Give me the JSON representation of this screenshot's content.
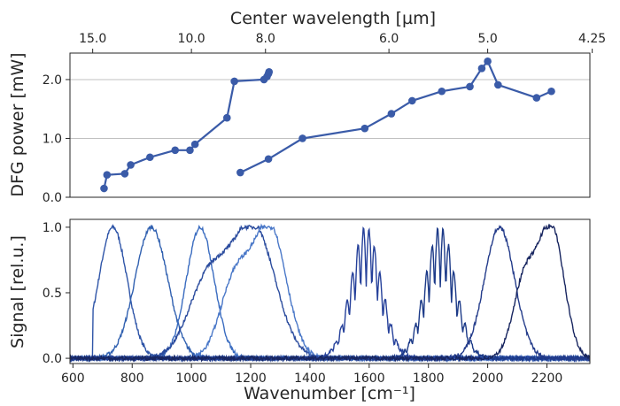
{
  "chart_data": [
    {
      "type": "line",
      "id": "top-panel",
      "top_axis_label": "Center wavelength [µm]",
      "top_ticks": [
        {
          "label": "15.0",
          "at_wavenumber": 666.7
        },
        {
          "label": "10.0",
          "at_wavenumber": 1000
        },
        {
          "label": "8.0",
          "at_wavenumber": 1250
        },
        {
          "label": "6.0",
          "at_wavenumber": 1666.7
        },
        {
          "label": "5.0",
          "at_wavenumber": 2000
        },
        {
          "label": "4.25",
          "at_wavenumber": 2352.9
        }
      ],
      "xlim": [
        590,
        2345
      ],
      "ylabel": "DFG power [mW]",
      "ylim": [
        0,
        2.45
      ],
      "yticks": [
        "0.0",
        "1.0",
        "2.0"
      ],
      "grid": "horizontal",
      "color": "#3a5ba8",
      "series": [
        {
          "x": [
            705,
            715,
            775,
            795,
            860,
            945,
            995,
            1012,
            1120,
            1145,
            1245,
            1255,
            1260,
            1262
          ],
          "y": [
            0.15,
            0.38,
            0.4,
            0.55,
            0.68,
            0.8,
            0.8,
            0.9,
            1.35,
            1.97,
            2.0,
            2.05,
            2.1,
            2.13
          ]
        },
        {
          "x": [
            1165,
            1260,
            1375,
            1585,
            1675,
            1745,
            1845,
            1940,
            1980,
            2000,
            2035,
            2165,
            2215
          ],
          "y": [
            0.42,
            0.65,
            1.0,
            1.17,
            1.42,
            1.64,
            1.8,
            1.88,
            2.19,
            2.31,
            1.91,
            1.69,
            1.8
          ]
        }
      ]
    },
    {
      "type": "line",
      "id": "bottom-panel",
      "xlabel": "Wavenumber [cm⁻¹]",
      "xticks": [
        "600",
        "800",
        "1000",
        "1200",
        "1400",
        "1600",
        "1800",
        "2000",
        "2200"
      ],
      "xlim": [
        590,
        2345
      ],
      "ylabel": "Signal [rel.u.]",
      "ylim": [
        -0.04,
        1.06
      ],
      "yticks": [
        "0.0",
        "0.5",
        "1.0"
      ],
      "series": [
        {
          "center": 735,
          "width": 90,
          "shape": "sharp-left-edge",
          "color": "#2f55a8"
        },
        {
          "center": 865,
          "width": 130,
          "shape": "gauss",
          "color": "#3060b0"
        },
        {
          "center": 1030,
          "width": 110,
          "shape": "gauss",
          "color": "#3a6cc0"
        },
        {
          "center": 1210,
          "width": 170,
          "shape": "double",
          "color": "#2b4c9e"
        },
        {
          "center": 1265,
          "width": 130,
          "shape": "double",
          "color": "#4a78c8"
        },
        {
          "center": 1590,
          "width": 120,
          "shape": "absorption",
          "color": "#25409a"
        },
        {
          "center": 1840,
          "width": 120,
          "shape": "absorption",
          "color": "#1c3a88"
        },
        {
          "center": 2040,
          "width": 120,
          "shape": "gauss",
          "color": "#233b8a"
        },
        {
          "center": 2215,
          "width": 100,
          "shape": "double",
          "color": "#182660"
        }
      ]
    }
  ]
}
